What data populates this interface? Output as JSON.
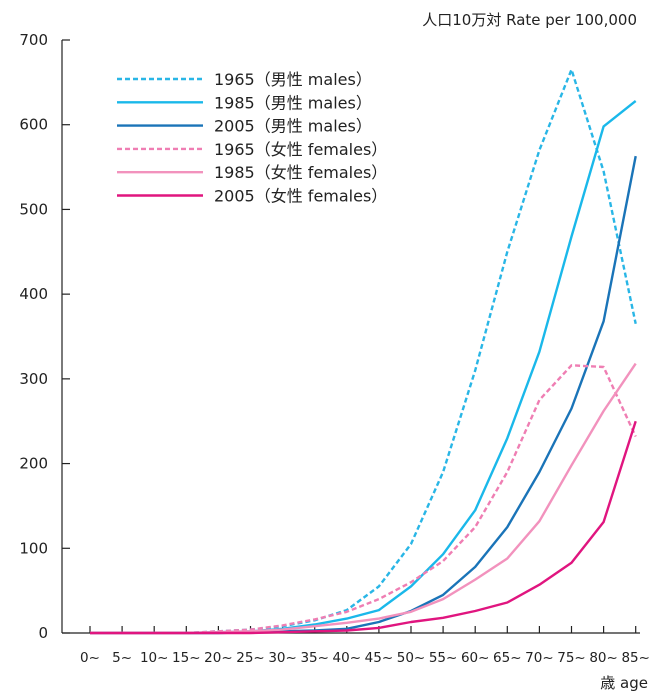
{
  "chart_data": {
    "type": "line",
    "ylabel": "人口10万対 Rate per 100,000",
    "xlabel": "歳 age",
    "ylim": [
      0,
      700
    ],
    "yticks": [
      0,
      100,
      200,
      300,
      400,
      500,
      600,
      700
    ],
    "categories": [
      "0~",
      "5~",
      "10~",
      "15~",
      "20~",
      "25~",
      "30~",
      "35~",
      "40~",
      "45~",
      "50~",
      "55~",
      "60~",
      "65~",
      "70~",
      "75~",
      "80~",
      "85~"
    ],
    "grid": false,
    "legend_position": "top-left",
    "series": [
      {
        "name": "1965（男性 males）",
        "color": "#29b6e6",
        "dash": true,
        "values": [
          0,
          0,
          0,
          0,
          2,
          4,
          8,
          15,
          27,
          55,
          105,
          190,
          310,
          450,
          570,
          665,
          545,
          365
        ]
      },
      {
        "name": "1985（男性 males）",
        "color": "#1ab8ea",
        "dash": false,
        "values": [
          0,
          0,
          0,
          0,
          1,
          2,
          5,
          10,
          17,
          27,
          55,
          93,
          145,
          230,
          332,
          468,
          598,
          628
        ]
      },
      {
        "name": "2005（男性 males）",
        "color": "#1a74b8",
        "dash": false,
        "values": [
          0,
          0,
          0,
          0,
          0,
          1,
          2,
          3,
          5,
          13,
          26,
          45,
          78,
          125,
          190,
          265,
          368,
          563
        ]
      },
      {
        "name": "1965（女性 females）",
        "color": "#ef7eb3",
        "dash": true,
        "values": [
          0,
          0,
          0,
          0,
          2,
          4,
          9,
          16,
          25,
          40,
          60,
          85,
          125,
          190,
          275,
          316,
          314,
          232
        ]
      },
      {
        "name": "1985（女性 females）",
        "color": "#f292bd",
        "dash": false,
        "values": [
          0,
          0,
          0,
          0,
          1,
          2,
          4,
          8,
          12,
          17,
          25,
          40,
          63,
          88,
          132,
          198,
          262,
          318
        ]
      },
      {
        "name": "2005（女性 females）",
        "color": "#e0157f",
        "dash": false,
        "values": [
          0,
          0,
          0,
          0,
          0,
          0,
          1,
          2,
          3,
          6,
          13,
          18,
          26,
          36,
          57,
          83,
          131,
          250
        ]
      }
    ]
  }
}
